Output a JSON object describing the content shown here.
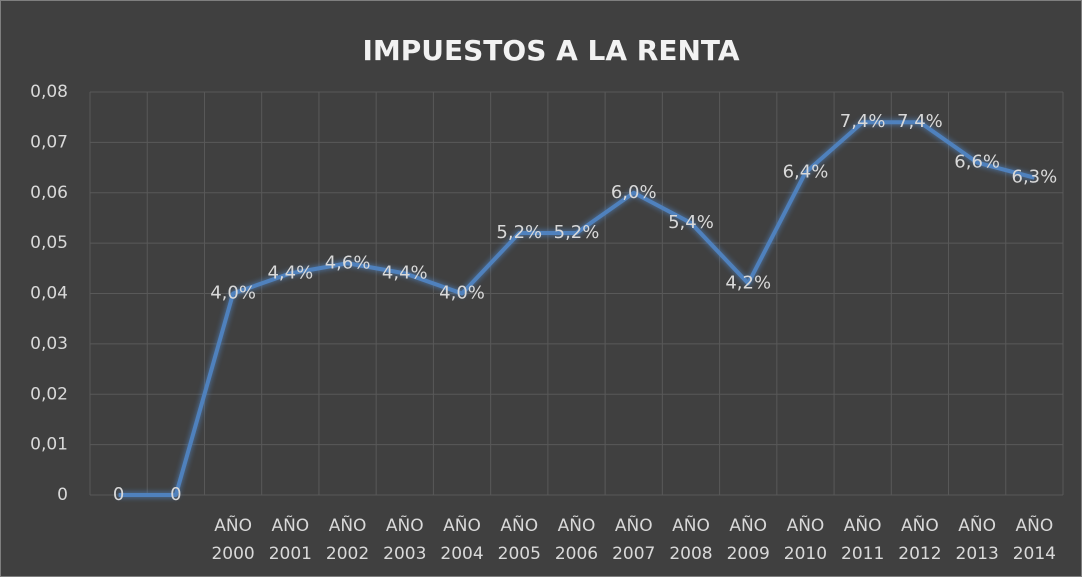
{
  "chart_data": {
    "type": "line",
    "title": "IMPUESTOS A LA RENTA",
    "categories": [
      null,
      null,
      "AÑO 2000",
      "AÑO 2001",
      "AÑO 2002",
      "AÑO 2003",
      "AÑO 2004",
      "AÑO 2005",
      "AÑO 2006",
      "AÑO 2007",
      "AÑO 2008",
      "AÑO 2009",
      "AÑO 2010",
      "AÑO 2011",
      "AÑO 2012",
      "AÑO 2013",
      "AÑO 2014"
    ],
    "series": [
      {
        "name": "IMPUESTOS A LA RENTA",
        "color": "#4f81bd",
        "values": [
          0,
          0,
          0.04,
          0.044,
          0.046,
          0.044,
          0.04,
          0.052,
          0.052,
          0.06,
          0.054,
          0.042,
          0.064,
          0.074,
          0.074,
          0.066,
          0.063
        ],
        "value_labels": [
          "0",
          "0",
          "4,0%",
          "4,4%",
          "4,6%",
          "4,4%",
          "4,0%",
          "5,2%",
          "5,2%",
          "6,0%",
          "5,4%",
          "4,2%",
          "6,4%",
          "7,4%",
          "7,4%",
          "6,6%",
          "6,3%"
        ]
      }
    ],
    "ylim": [
      0,
      0.08
    ],
    "yticks": [
      0,
      {
        "value": 0.01,
        "label": "0,01"
      },
      {
        "value": 0.02,
        "label": "0,02"
      },
      {
        "value": 0.03,
        "label": "0,03"
      },
      {
        "value": 0.04,
        "label": "0,04"
      },
      {
        "value": 0.05,
        "label": "0,05"
      },
      {
        "value": 0.06,
        "label": "0,06"
      },
      {
        "value": 0.07,
        "label": "0,07"
      },
      {
        "value": 0.08,
        "label": "0,08"
      }
    ],
    "grid": true
  }
}
